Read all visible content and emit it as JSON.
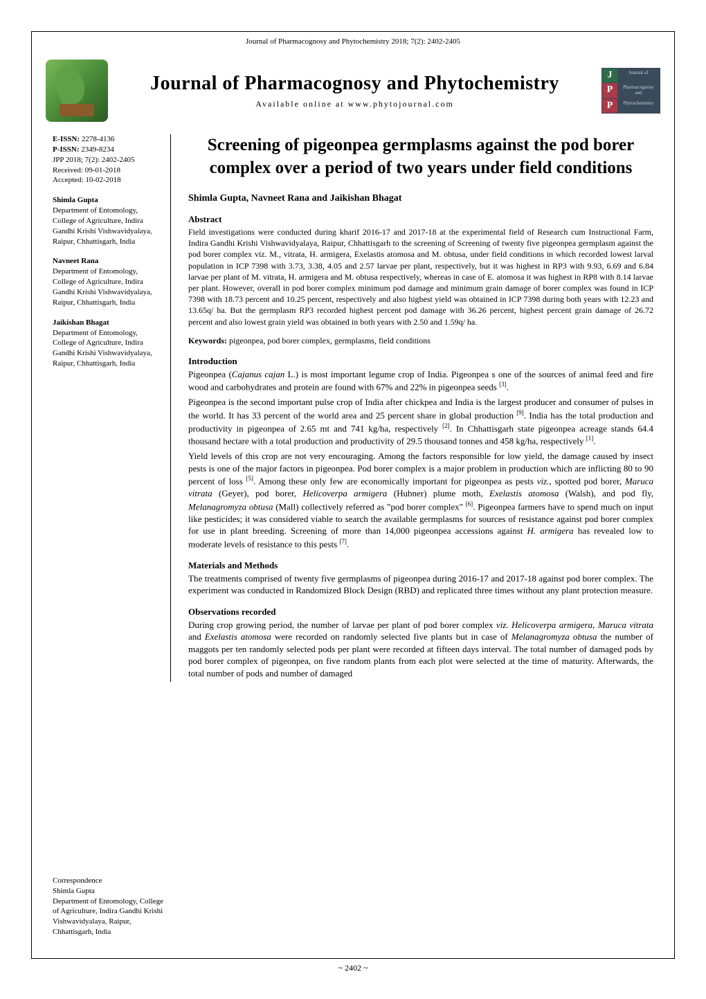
{
  "running_header": "Journal of Pharmacognosy and Phytochemistry 2018; 7(2): 2402-2405",
  "masthead": {
    "title": "Journal of Pharmacognosy and Phytochemistry",
    "subtitle": "Available  online  at   www.phytojournal.com"
  },
  "logo_right": {
    "rows": [
      {
        "letter": "J",
        "text": "Journal of"
      },
      {
        "letter": "P",
        "text": "Pharmacognosy and"
      },
      {
        "letter": "P",
        "text": "Phytochemistry"
      }
    ]
  },
  "sidebar": {
    "meta": [
      {
        "label": "E-ISSN:",
        "value": "2278-4136",
        "bold_label": true
      },
      {
        "label": "P-ISSN:",
        "value": "2349-8234",
        "bold_label": true
      },
      {
        "label": "JPP 2018; 7(2): 2402-2405",
        "value": "",
        "bold_label": false
      },
      {
        "label": "Received: 09-01-2018",
        "value": "",
        "bold_label": false
      },
      {
        "label": "Accepted: 10-02-2018",
        "value": "",
        "bold_label": false
      }
    ],
    "authors": [
      {
        "name": "Shimla Gupta",
        "affil": "Department of Entomology, College of Agriculture, Indira Gandhi Krishi Vishwavidyalaya, Raipur, Chhattisgarh, India"
      },
      {
        "name": "Navneet Rana",
        "affil": "Department of Entomology, College of Agriculture, Indira Gandhi Krishi Vishwavidyalaya, Raipur, Chhattisgarh, India"
      },
      {
        "name": "Jaikishan Bhagat",
        "affil": "Department of Entomology, College of Agriculture, Indira Gandhi Krishi Vishwavidyalaya, Raipur, Chhattisgarh, India"
      }
    ],
    "correspondence": {
      "heading": "Correspondence",
      "name": "Shimla Gupta",
      "affil": "Department of Entomology, College of Agriculture, Indira Gandhi Krishi Vishwavidyalaya, Raipur, Chhattisgarh, India"
    }
  },
  "article": {
    "title": "Screening of pigeonpea germplasms against the pod borer complex over a period of two years under field conditions",
    "authors_line": "Shimla Gupta, Navneet Rana and Jaikishan Bhagat",
    "abstract_heading": "Abstract",
    "abstract": "Field investigations were conducted during kharif 2016-17 and 2017-18 at the experimental field of Research cum Instructional Farm, Indira Gandhi Krishi Vishwavidyalaya, Raipur, Chhattisgarh to the screening of Screening of twenty five pigeonpea germplasm against the pod borer complex viz. M., vitrata, H. armigera, Exelastis atomosa and M. obtusa, under field conditions in which recorded lowest larval population in ICP 7398 with 3.73, 3.38, 4.05 and 2.57 larvae per plant, respectively, but it was highest in RP3 with 9.93, 6.69 and 6.84 larvae per plant of M. vitrata, H. armigera and M. obtusa respectively, whereas in case of E. atomosa it was highest in RP8 with 8.14 larvae per plant. However, overall in pod borer complex minimum pod damage and minimum grain damage of borer complex was found in ICP 7398 with 18.73 percent and 10.25 percent, respectively and also highest yield was obtained in ICP 7398 during both years with 12.23 and 13.65q/ ha. But the germplasm RP3 recorded highest percent pod damage with 36.26 percent, highest percent grain damage of 26.72 percent and also lowest grain yield was obtained in both years with 2.50 and 1.59q/ ha.",
    "keywords_label": "Keywords:",
    "keywords": "pigeonpea, pod borer complex, germplasms, field conditions",
    "sections": {
      "intro_heading": "Introduction",
      "intro_p1a": "Pigeonpea (",
      "intro_p1_species": "Cajanus cajan",
      "intro_p1b": " L.) is most important legume crop of India. Pigeonpea s one of the sources of animal feed and fire wood and carbohydrates and protein are found with 67% and 22% in pigeonpea seeds ",
      "intro_p1_ref": "[3]",
      "intro_p1c": ".",
      "intro_p2a": "Pigeonpea is the second important pulse crop of India after chickpea and India is the largest producer and consumer of pulses in the world. It has 33 percent of the world area and 25 percent share in global production ",
      "intro_p2_ref1": "[9]",
      "intro_p2b": ". India has the total production and productivity in pigeonpea of 2.65 mt and 741 kg/ha, respectively ",
      "intro_p2_ref2": "[2]",
      "intro_p2c": ". In Chhattisgarh state pigeonpea acreage stands 64.4 thousand hectare with a total production and productivity of 29.5 thousand tonnes and 458 kg/ha, respectively ",
      "intro_p2_ref3": "[1]",
      "intro_p2d": ".",
      "intro_p3a": "Yield levels of this crop are not very encouraging. Among the factors responsible for low yield, the damage caused by insect pests is one of the major factors in pigeonpea. Pod borer complex is a major problem in production which are inflicting 80 to 90 percent of loss ",
      "intro_p3_ref1": "[5]",
      "intro_p3b": ". Among these only few are economically important for pigeonpea as pests ",
      "intro_p3_viz": "viz.,",
      "intro_p3c": " spotted pod borer, ",
      "intro_p3_sp1": "Maruca vitrata",
      "intro_p3d": " (Geyer), pod borer, ",
      "intro_p3_sp2": "Helicoverpa armigera",
      "intro_p3e": " (Hubner) plume moth, ",
      "intro_p3_sp3": "Exelastis atomosa",
      "intro_p3f": " (Walsh), and pod fly, ",
      "intro_p3_sp4": "Melanagromyza obtusa",
      "intro_p3g": " (Mall) collectively referred as \"pod borer complex\" ",
      "intro_p3_ref2": "[6]",
      "intro_p3h": ". Pigeonpea farmers have to spend much on input like pesticides; it was considered viable to search the available germplasms for sources of resistance against pod borer complex for use in plant breeding. Screening of more than 14,000 pigeonpea accessions against ",
      "intro_p3_sp5": "H. armigera",
      "intro_p3i": " has revealed low to moderate levels of resistance to this pests ",
      "intro_p3_ref3": "[7]",
      "intro_p3j": ".",
      "mm_heading": "Materials and Methods",
      "mm_p1": "The treatments comprised of twenty five germplasms of pigeonpea during 2016-17 and 2017-18 against pod borer complex. The experiment was conducted in Randomized Block Design (RBD) and replicated three times without any plant protection measure.",
      "obs_heading": "Observations recorded",
      "obs_p1a": "During crop growing period, the number of larvae per plant of pod borer complex ",
      "obs_viz": "viz. Helicoverpa armigera, Maruca vitrata",
      "obs_p1b": " and ",
      "obs_sp": "Exelastis atomosa",
      "obs_p1c": " were recorded on randomly selected five plants but in case of ",
      "obs_sp2": "Melanagromyza obtusa",
      "obs_p1d": " the number of maggots per ten randomly selected pods per plant were recorded at fifteen days interval. The total number of damaged pods by pod borer complex of pigeonpea, on five random plants from each plot were selected at the time of maturity. Afterwards, the total number of pods and number of damaged"
    }
  },
  "page_number": "~ 2402 ~",
  "colors": {
    "border": "#000000",
    "text": "#000000",
    "bg": "#ffffff"
  }
}
